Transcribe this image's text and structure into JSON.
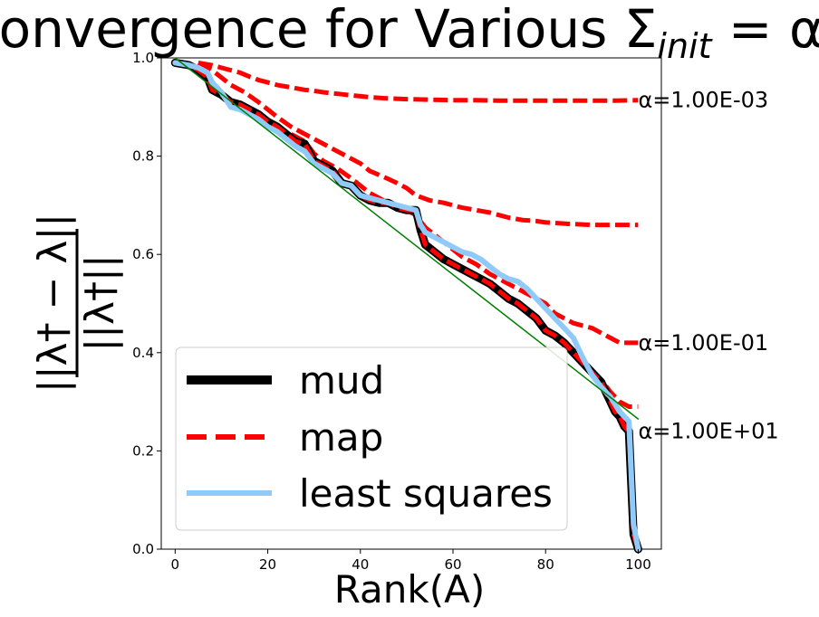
{
  "chart_data": {
    "type": "line",
    "title": "Convergence for Various Σ_init = αΣ",
    "title_parts": {
      "main": "Convergence for Various Σ",
      "sub": "init",
      "rest": " = αΣ"
    },
    "xlabel": "Rank(A)",
    "ylabel": "||λ† − λ|| / ||λ†||",
    "ylabel_parts": {
      "numerator": "||λ† − λ||",
      "denominator": "||λ†||"
    },
    "xlim": [
      -3,
      105
    ],
    "ylim": [
      0.0,
      1.0
    ],
    "xticks": [
      0,
      20,
      40,
      60,
      80,
      100
    ],
    "yticks": [
      0.0,
      0.2,
      0.4,
      0.6,
      0.8,
      1.0
    ],
    "xtick_labels": [
      "0",
      "20",
      "40",
      "60",
      "80",
      "100"
    ],
    "ytick_labels": [
      "0.0",
      "0.2",
      "0.4",
      "0.6",
      "0.8",
      "1.0"
    ],
    "grid": false,
    "legend": {
      "placement": "lower-left",
      "entries": [
        "mud",
        "map",
        "least squares"
      ]
    },
    "annotations": [
      {
        "text": "α=1.00E-03",
        "x": 100,
        "y": 0.914
      },
      {
        "text": "α=1.00E-01",
        "x": 100,
        "y": 0.42
      },
      {
        "text": "α=1.00E+01",
        "x": 100,
        "y": 0.24
      }
    ],
    "series": [
      {
        "name": "mud",
        "style": "solid",
        "color": "#000000",
        "x": [
          0,
          3,
          5,
          7,
          8,
          9,
          10,
          12,
          14,
          16,
          18,
          20,
          22,
          24,
          26,
          28,
          30,
          32,
          34,
          36,
          38,
          40,
          42,
          44,
          46,
          48,
          50,
          52,
          53,
          54,
          56,
          58,
          60,
          62,
          64,
          66,
          68,
          70,
          72,
          74,
          76,
          78,
          80,
          82,
          84,
          86,
          88,
          90,
          92,
          94,
          95,
          96,
          97,
          98,
          99,
          100
        ],
        "y": [
          0.99,
          0.985,
          0.975,
          0.96,
          0.935,
          0.93,
          0.925,
          0.91,
          0.905,
          0.895,
          0.885,
          0.87,
          0.86,
          0.845,
          0.83,
          0.825,
          0.79,
          0.78,
          0.77,
          0.745,
          0.74,
          0.72,
          0.71,
          0.705,
          0.705,
          0.695,
          0.69,
          0.69,
          0.65,
          0.62,
          0.605,
          0.59,
          0.58,
          0.57,
          0.56,
          0.55,
          0.54,
          0.525,
          0.51,
          0.5,
          0.485,
          0.47,
          0.445,
          0.435,
          0.42,
          0.4,
          0.38,
          0.36,
          0.34,
          0.3,
          0.28,
          0.27,
          0.25,
          0.24,
          0.03,
          0.0
        ]
      },
      {
        "name": "map",
        "style": "dashed",
        "color": "#ff0000",
        "x": [
          0,
          3,
          5,
          7,
          8,
          9,
          10,
          12,
          14,
          16,
          18,
          20,
          22,
          24,
          26,
          28,
          30,
          32,
          34,
          36,
          38,
          40,
          42,
          44,
          46,
          48,
          50,
          52,
          53,
          54,
          56,
          58,
          60,
          62,
          64,
          66,
          68,
          70,
          72,
          74,
          76,
          78,
          80,
          82,
          84,
          86,
          88,
          90,
          92,
          94,
          95,
          96,
          97,
          98,
          99,
          100
        ],
        "y": [
          0.99,
          0.985,
          0.975,
          0.96,
          0.935,
          0.93,
          0.925,
          0.91,
          0.905,
          0.895,
          0.885,
          0.87,
          0.86,
          0.845,
          0.83,
          0.825,
          0.79,
          0.78,
          0.77,
          0.745,
          0.74,
          0.72,
          0.71,
          0.705,
          0.705,
          0.695,
          0.69,
          0.69,
          0.65,
          0.62,
          0.605,
          0.59,
          0.58,
          0.57,
          0.56,
          0.55,
          0.54,
          0.525,
          0.51,
          0.5,
          0.485,
          0.47,
          0.445,
          0.435,
          0.42,
          0.4,
          0.38,
          0.36,
          0.34,
          0.3,
          0.28,
          0.27,
          0.25,
          0.24,
          0.03,
          0.0
        ]
      },
      {
        "name": "least squares",
        "style": "solid",
        "color": "#90caf9",
        "x": [
          0,
          3,
          5,
          7,
          8,
          10,
          12,
          14,
          16,
          18,
          20,
          22,
          24,
          26,
          28,
          30,
          32,
          34,
          36,
          38,
          40,
          42,
          44,
          46,
          48,
          50,
          52,
          53,
          54,
          56,
          58,
          60,
          62,
          64,
          66,
          68,
          70,
          72,
          74,
          76,
          78,
          80,
          82,
          84,
          86,
          88,
          90,
          92,
          94,
          96,
          98,
          99,
          100
        ],
        "y": [
          0.99,
          0.985,
          0.98,
          0.97,
          0.95,
          0.93,
          0.9,
          0.895,
          0.885,
          0.875,
          0.86,
          0.85,
          0.835,
          0.82,
          0.81,
          0.785,
          0.775,
          0.765,
          0.745,
          0.74,
          0.72,
          0.715,
          0.71,
          0.705,
          0.7,
          0.695,
          0.69,
          0.66,
          0.645,
          0.635,
          0.625,
          0.615,
          0.605,
          0.6,
          0.59,
          0.575,
          0.56,
          0.55,
          0.545,
          0.53,
          0.51,
          0.49,
          0.47,
          0.45,
          0.43,
          0.39,
          0.355,
          0.33,
          0.31,
          0.28,
          0.26,
          0.05,
          0.0
        ]
      },
      {
        "name": "",
        "style": "solid",
        "color": "#008000",
        "x": [
          0,
          100
        ],
        "y": [
          1.0,
          0.265
        ]
      },
      {
        "name": "",
        "style": "dashed",
        "color": "#ff0000",
        "x": [
          5,
          8,
          10,
          12,
          14,
          16,
          18,
          20,
          22,
          25,
          28,
          30,
          32,
          34,
          36,
          38,
          40,
          42,
          45,
          50,
          55,
          60,
          65,
          70,
          75,
          80,
          85,
          90,
          95,
          100
        ],
        "y": [
          0.99,
          0.985,
          0.98,
          0.975,
          0.97,
          0.962,
          0.955,
          0.95,
          0.945,
          0.94,
          0.935,
          0.933,
          0.93,
          0.928,
          0.926,
          0.924,
          0.922,
          0.92,
          0.918,
          0.916,
          0.915,
          0.914,
          0.914,
          0.913,
          0.913,
          0.913,
          0.913,
          0.913,
          0.913,
          0.914
        ]
      },
      {
        "name": "",
        "style": "dashed",
        "color": "#ff0000",
        "x": [
          5,
          8,
          10,
          12,
          15,
          18,
          20,
          22,
          25,
          28,
          30,
          32,
          35,
          38,
          40,
          42,
          45,
          48,
          50,
          52,
          55,
          58,
          60,
          62,
          65,
          68,
          70,
          72,
          75,
          78,
          80,
          82,
          85,
          88,
          90,
          92,
          95,
          98,
          100
        ],
        "y": [
          0.99,
          0.975,
          0.96,
          0.945,
          0.93,
          0.91,
          0.895,
          0.88,
          0.86,
          0.845,
          0.835,
          0.825,
          0.81,
          0.795,
          0.785,
          0.77,
          0.758,
          0.745,
          0.735,
          0.72,
          0.71,
          0.705,
          0.7,
          0.695,
          0.69,
          0.685,
          0.68,
          0.675,
          0.67,
          0.668,
          0.665,
          0.664,
          0.662,
          0.661,
          0.66,
          0.66,
          0.66,
          0.66,
          0.66
        ]
      },
      {
        "name": "",
        "style": "dashed",
        "color": "#ff0000",
        "x": [
          0,
          3,
          5,
          7,
          8,
          10,
          12,
          14,
          16,
          18,
          20,
          22,
          25,
          28,
          30,
          32,
          35,
          38,
          40,
          42,
          45,
          48,
          50,
          52,
          54,
          56,
          58,
          60,
          62,
          65,
          68,
          70,
          72,
          75,
          78,
          80,
          82,
          84,
          86,
          88,
          90,
          92,
          94,
          96,
          98,
          100
        ],
        "y": [
          0.99,
          0.985,
          0.975,
          0.96,
          0.94,
          0.925,
          0.91,
          0.9,
          0.89,
          0.88,
          0.87,
          0.86,
          0.845,
          0.83,
          0.805,
          0.79,
          0.775,
          0.755,
          0.74,
          0.725,
          0.71,
          0.7,
          0.69,
          0.68,
          0.655,
          0.64,
          0.625,
          0.61,
          0.595,
          0.58,
          0.56,
          0.55,
          0.54,
          0.525,
          0.51,
          0.5,
          0.48,
          0.47,
          0.46,
          0.455,
          0.45,
          0.44,
          0.43,
          0.42,
          0.42,
          0.42
        ]
      },
      {
        "name": "",
        "style": "dashed",
        "color": "#ff0000",
        "x": [
          90,
          92,
          94,
          96,
          98,
          100
        ],
        "y": [
          0.36,
          0.345,
          0.32,
          0.3,
          0.29,
          0.29
        ]
      }
    ]
  }
}
